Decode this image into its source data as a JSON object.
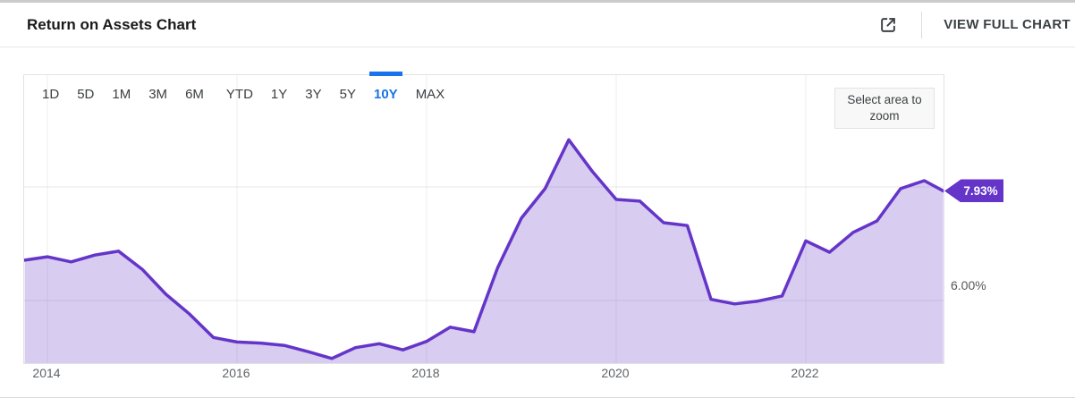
{
  "header": {
    "title": "Return on Assets Chart",
    "view_full_chart": "VIEW FULL CHART"
  },
  "range_selector": {
    "options": [
      "1D",
      "5D",
      "1M",
      "3M",
      "6M",
      "YTD",
      "1Y",
      "3Y",
      "5Y",
      "10Y",
      "MAX"
    ],
    "active": "10Y"
  },
  "hint": {
    "select_area_to_zoom": "Select area to zoom"
  },
  "colors": {
    "line_purple": "#6435c8",
    "area_fill": "rgba(99,53,200,0.25)",
    "grid_vertical": "#ececec",
    "grid_horizontal": "#e7e7e7",
    "active_range_blue": "#1a73e8",
    "badge_bg": "#6435c8",
    "badge_text": "#ffffff"
  },
  "chart_data": {
    "type": "area",
    "title": "Return on Assets Chart",
    "x_unit": "year (quarterly points)",
    "x": [
      2013.76,
      2014.0,
      2014.25,
      2014.5,
      2014.75,
      2015.0,
      2015.25,
      2015.5,
      2015.75,
      2016.0,
      2016.25,
      2016.5,
      2016.75,
      2017.0,
      2017.25,
      2017.5,
      2017.75,
      2018.0,
      2018.25,
      2018.5,
      2018.75,
      2019.0,
      2019.25,
      2019.5,
      2019.75,
      2020.0,
      2020.25,
      2020.5,
      2020.75,
      2021.0,
      2021.25,
      2021.5,
      2021.75,
      2022.0,
      2022.25,
      2022.5,
      2022.75,
      2023.0,
      2023.25,
      2023.45
    ],
    "values": [
      6.71,
      6.77,
      6.68,
      6.8,
      6.87,
      6.55,
      6.11,
      5.76,
      5.35,
      5.27,
      5.25,
      5.21,
      5.1,
      4.98,
      5.17,
      5.24,
      5.13,
      5.28,
      5.53,
      5.45,
      6.58,
      7.45,
      7.97,
      8.83,
      8.27,
      7.78,
      7.75,
      7.37,
      7.32,
      6.02,
      5.94,
      5.99,
      6.08,
      7.05,
      6.85,
      7.2,
      7.4,
      7.97,
      8.11,
      7.93
    ],
    "x_ticks": [
      "2014",
      "2016",
      "2018",
      "2020",
      "2022"
    ],
    "x_tick_positions": [
      2014,
      2016,
      2018,
      2020,
      2022
    ],
    "y_gridlines": [
      6.0,
      8.0
    ],
    "y_axis_label": "6.00%",
    "last_value": 7.93,
    "last_value_label": "7.93%",
    "xlim": [
      2013.76,
      2023.46
    ],
    "ylim": [
      4.9,
      9.98
    ],
    "grid": "on",
    "legend": "none"
  }
}
